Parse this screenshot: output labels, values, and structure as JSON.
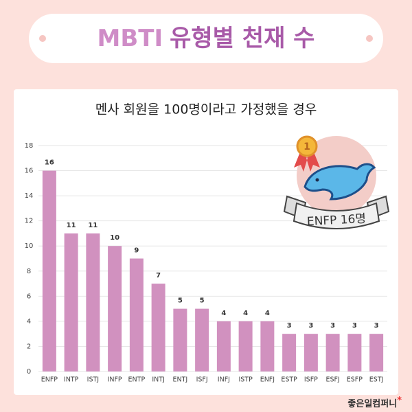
{
  "chart_data": {
    "type": "bar",
    "title": [
      "MBTI",
      "유형별 천재 수"
    ],
    "subtitle": "멘사 회원을 100명이라고 가정했을 경우",
    "categories": [
      "ENFP",
      "INTP",
      "ISTJ",
      "INFP",
      "ENTP",
      "INTJ",
      "ENTJ",
      "ISFJ",
      "INFJ",
      "ISTP",
      "ENFJ",
      "ESTP",
      "ISFP",
      "ESFJ",
      "ESFP",
      "ESTJ"
    ],
    "values": [
      16,
      11,
      11,
      10,
      9,
      7,
      5,
      5,
      4,
      4,
      4,
      3,
      3,
      3,
      3,
      3
    ],
    "color": "#d191bf",
    "ylim": [
      0,
      18
    ],
    "yticks": [
      0,
      2,
      4,
      6,
      8,
      10,
      12,
      14,
      16,
      18
    ],
    "grid": true,
    "badge": {
      "medal": "1",
      "label": "ENFP 16명"
    },
    "footer": "좋은일컴퍼니"
  }
}
